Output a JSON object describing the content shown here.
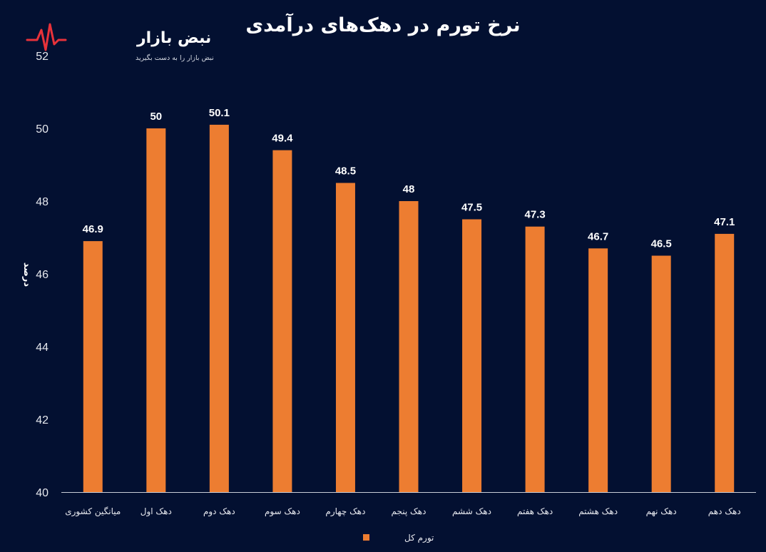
{
  "brand": {
    "name": "نبض بازار",
    "tagline": "نبض بازار را به دست بگیرید",
    "accent": "#e8323a"
  },
  "colors": {
    "background": "#031031",
    "bar": "#ed7d31",
    "text": "#ffffff"
  },
  "chart_data": {
    "type": "bar",
    "title": "نرخ تورم در دهک‌های درآمدی",
    "xlabel": "",
    "ylabel": "درصد",
    "ylim": [
      40,
      52
    ],
    "yticks": [
      40,
      42,
      44,
      46,
      48,
      50,
      52
    ],
    "grid": false,
    "legend_position": "bottom",
    "categories": [
      "میانگین کشوری",
      "دهک اول",
      "دهک دوم",
      "دهک سوم",
      "دهک چهارم",
      "دهک پنجم",
      "دهک ششم",
      "دهک هفتم",
      "دهک هشتم",
      "دهک نهم",
      "دهک دهم"
    ],
    "series": [
      {
        "name": "تورم کل",
        "color": "#ed7d31",
        "values": [
          46.9,
          50,
          50.1,
          49.4,
          48.5,
          48,
          47.5,
          47.3,
          46.7,
          46.5,
          47.1
        ]
      }
    ]
  }
}
